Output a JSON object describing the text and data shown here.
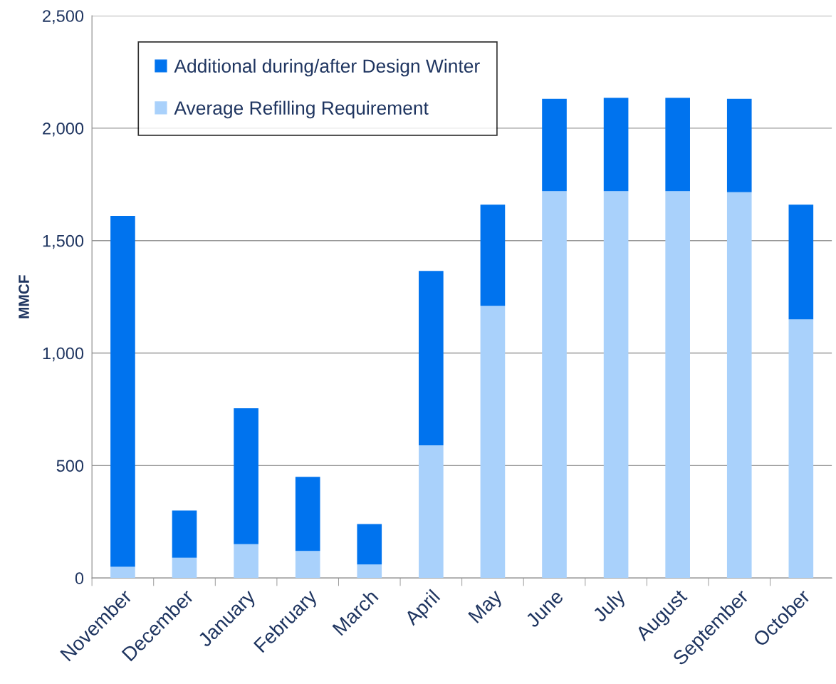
{
  "chart_data": {
    "type": "bar",
    "stacked": true,
    "ylabel": "MMCF",
    "categories": [
      "November",
      "December",
      "January",
      "February",
      "March",
      "April",
      "May",
      "June",
      "July",
      "August",
      "September",
      "October"
    ],
    "series": [
      {
        "name": "Average Refilling Requirement",
        "color": "#a9d1fb",
        "values": [
          50,
          90,
          150,
          120,
          60,
          590,
          1210,
          1720,
          1720,
          1720,
          1715,
          1150
        ]
      },
      {
        "name": "Additional during/after Design Winter",
        "color": "#0073ee",
        "values": [
          1560,
          210,
          605,
          330,
          180,
          775,
          450,
          410,
          415,
          415,
          415,
          510
        ]
      }
    ],
    "ylim": [
      0,
      2500
    ],
    "yticks": [
      0,
      500,
      {
        "value": 1000,
        "label": "1,000"
      },
      {
        "value": 1500,
        "label": "1,500"
      },
      {
        "value": 2000,
        "label": "2,000"
      },
      {
        "value": 2500,
        "label": "2,500"
      }
    ],
    "grid": "y",
    "legend": "top left"
  }
}
